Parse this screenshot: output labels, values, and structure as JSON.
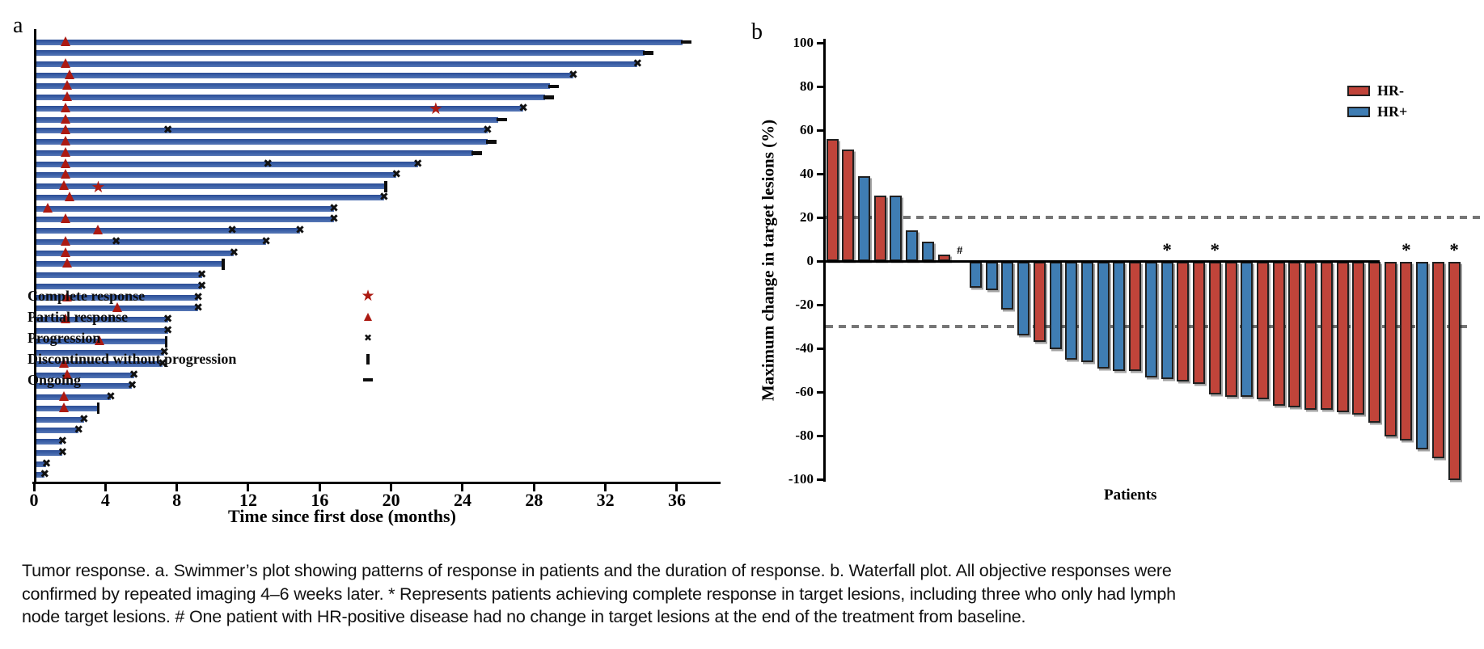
{
  "figure": {
    "panel_a_label": "a",
    "panel_b_label": "b",
    "background": "#ffffff"
  },
  "caption": {
    "lines": [
      "Tumor response. a. Swimmer’s plot showing patterns of response in patients and the duration of response. b. Waterfall plot. All objective responses were",
      "confirmed by repeated imaging 4–6 weeks later. * Represents patients achieving complete response in target lesions, including three who only had lymph",
      "node target lesions. # One patient with HR-positive disease had no change in target lesions at the end of the treatment from baseline."
    ]
  },
  "chart_data": [
    {
      "id": "swimmer_plot",
      "type": "bar",
      "orientation": "horizontal",
      "xlabel": "Time since first dose (months)",
      "xlim": [
        0,
        38.4
      ],
      "x_ticks": [
        0,
        4,
        8,
        12,
        16,
        20,
        24,
        28,
        32,
        36
      ],
      "grid": false,
      "bar_color": "#3a5fa7",
      "response_marker_color": "#ac1a12",
      "event_marker_color": "#111111",
      "legend_position": "center-right",
      "legend": [
        {
          "symbol": "star",
          "label": "Complete response"
        },
        {
          "symbol": "triangle",
          "label": "Partial response"
        },
        {
          "symbol": "x",
          "label": "Progression"
        },
        {
          "symbol": "bar",
          "label": "Discontinued without progression"
        },
        {
          "symbol": "dash",
          "label": "Ongoing"
        }
      ],
      "patients": [
        {
          "months": 36.3,
          "end": "ongoing",
          "events": [
            {
              "type": "partial_response",
              "month": 1.8
            }
          ]
        },
        {
          "months": 34.2,
          "end": "ongoing",
          "events": []
        },
        {
          "months": 33.8,
          "end": "progression",
          "events": [
            {
              "type": "partial_response",
              "month": 1.8
            }
          ]
        },
        {
          "months": 30.2,
          "end": "progression",
          "events": [
            {
              "type": "partial_response",
              "month": 2.0
            }
          ]
        },
        {
          "months": 28.9,
          "end": "ongoing",
          "events": [
            {
              "type": "partial_response",
              "month": 1.9
            }
          ]
        },
        {
          "months": 28.6,
          "end": "ongoing",
          "events": [
            {
              "type": "partial_response",
              "month": 1.9
            }
          ]
        },
        {
          "months": 27.4,
          "end": "progression",
          "events": [
            {
              "type": "partial_response",
              "month": 1.8
            },
            {
              "type": "complete_response",
              "month": 22.5
            }
          ]
        },
        {
          "months": 26.0,
          "end": "ongoing",
          "events": [
            {
              "type": "partial_response",
              "month": 1.8
            }
          ]
        },
        {
          "months": 25.4,
          "end": "progression",
          "events": [
            {
              "type": "partial_response",
              "month": 1.8
            },
            {
              "type": "progression",
              "month": 7.5
            }
          ]
        },
        {
          "months": 25.4,
          "end": "ongoing",
          "events": [
            {
              "type": "partial_response",
              "month": 1.8
            }
          ]
        },
        {
          "months": 24.6,
          "end": "ongoing",
          "events": [
            {
              "type": "partial_response",
              "month": 1.8
            }
          ]
        },
        {
          "months": 21.5,
          "end": "progression",
          "events": [
            {
              "type": "partial_response",
              "month": 1.8
            },
            {
              "type": "progression",
              "month": 13.1
            }
          ]
        },
        {
          "months": 20.3,
          "end": "progression",
          "events": [
            {
              "type": "partial_response",
              "month": 1.8
            }
          ]
        },
        {
          "months": 19.7,
          "end": "discontinued",
          "events": [
            {
              "type": "partial_response",
              "month": 1.7
            },
            {
              "type": "complete_response",
              "month": 3.6
            }
          ]
        },
        {
          "months": 19.6,
          "end": "progression",
          "events": [
            {
              "type": "partial_response",
              "month": 2.0
            }
          ]
        },
        {
          "months": 16.8,
          "end": "progression",
          "events": [
            {
              "type": "partial_response",
              "month": 0.8
            }
          ]
        },
        {
          "months": 16.8,
          "end": "progression",
          "events": [
            {
              "type": "partial_response",
              "month": 1.8
            }
          ]
        },
        {
          "months": 14.9,
          "end": "progression",
          "events": [
            {
              "type": "partial_response",
              "month": 3.6
            },
            {
              "type": "progression",
              "month": 11.1
            }
          ]
        },
        {
          "months": 13.0,
          "end": "progression",
          "events": [
            {
              "type": "partial_response",
              "month": 1.8
            },
            {
              "type": "progression",
              "month": 4.6
            }
          ]
        },
        {
          "months": 11.2,
          "end": "progression",
          "events": [
            {
              "type": "partial_response",
              "month": 1.8
            }
          ]
        },
        {
          "months": 10.6,
          "end": "discontinued",
          "events": [
            {
              "type": "partial_response",
              "month": 1.9
            }
          ]
        },
        {
          "months": 9.4,
          "end": "progression",
          "events": []
        },
        {
          "months": 9.4,
          "end": "progression",
          "events": []
        },
        {
          "months": 9.2,
          "end": "progression",
          "events": [
            {
              "type": "partial_response",
              "month": 1.9
            }
          ]
        },
        {
          "months": 9.2,
          "end": "progression",
          "events": [
            {
              "type": "partial_response",
              "month": 4.7
            }
          ]
        },
        {
          "months": 7.5,
          "end": "progression",
          "events": [
            {
              "type": "partial_response",
              "month": 1.8
            }
          ]
        },
        {
          "months": 7.5,
          "end": "progression",
          "events": []
        },
        {
          "months": 7.4,
          "end": "discontinued",
          "events": [
            {
              "type": "partial_response",
              "month": 3.7
            }
          ]
        },
        {
          "months": 7.3,
          "end": "progression",
          "events": []
        },
        {
          "months": 7.2,
          "end": "progression",
          "events": [
            {
              "type": "partial_response",
              "month": 1.7
            }
          ]
        },
        {
          "months": 5.6,
          "end": "progression",
          "events": [
            {
              "type": "partial_response",
              "month": 1.9
            }
          ]
        },
        {
          "months": 5.5,
          "end": "progression",
          "events": []
        },
        {
          "months": 4.3,
          "end": "progression",
          "events": [
            {
              "type": "partial_response",
              "month": 1.7
            }
          ]
        },
        {
          "months": 3.6,
          "end": "discontinued",
          "events": [
            {
              "type": "partial_response",
              "month": 1.7
            }
          ]
        },
        {
          "months": 2.8,
          "end": "progression",
          "events": []
        },
        {
          "months": 2.5,
          "end": "progression",
          "events": []
        },
        {
          "months": 1.6,
          "end": "progression",
          "events": []
        },
        {
          "months": 1.6,
          "end": "progression",
          "events": []
        },
        {
          "months": 0.7,
          "end": "progression",
          "events": []
        },
        {
          "months": 0.6,
          "end": "progression",
          "events": []
        }
      ]
    },
    {
      "id": "waterfall_plot",
      "type": "bar",
      "ylabel": "Maximum change in target lesions (%)",
      "xlabel": "Patients",
      "ylim": [
        -100,
        100
      ],
      "y_ticks": [
        100,
        80,
        60,
        40,
        20,
        0,
        -20,
        -40,
        -60,
        -80,
        -100
      ],
      "reference_lines": [
        20,
        -30
      ],
      "reference_line_color": "#767676",
      "grid": false,
      "legend_position": "top-right",
      "legend": [
        {
          "label": "HR-",
          "color": "#c0443a"
        },
        {
          "label": "HR+",
          "color": "#3f7db3"
        }
      ],
      "patients": [
        {
          "value": 56,
          "group": "HR-"
        },
        {
          "value": 51,
          "group": "HR-"
        },
        {
          "value": 39,
          "group": "HR+"
        },
        {
          "value": 30,
          "group": "HR-"
        },
        {
          "value": 30,
          "group": "HR+"
        },
        {
          "value": 14,
          "group": "HR+"
        },
        {
          "value": 9,
          "group": "HR+"
        },
        {
          "value": 3,
          "group": "HR-"
        },
        {
          "value": 0,
          "group": "HR+",
          "annotation": "#"
        },
        {
          "value": -12,
          "group": "HR+"
        },
        {
          "value": -13,
          "group": "HR+"
        },
        {
          "value": -22,
          "group": "HR+"
        },
        {
          "value": -34,
          "group": "HR+"
        },
        {
          "value": -37,
          "group": "HR-"
        },
        {
          "value": -40,
          "group": "HR+"
        },
        {
          "value": -45,
          "group": "HR+"
        },
        {
          "value": -46,
          "group": "HR+"
        },
        {
          "value": -49,
          "group": "HR+"
        },
        {
          "value": -50,
          "group": "HR+"
        },
        {
          "value": -50,
          "group": "HR-"
        },
        {
          "value": -53,
          "group": "HR+"
        },
        {
          "value": -54,
          "group": "HR+",
          "annotation": "*"
        },
        {
          "value": -55,
          "group": "HR-"
        },
        {
          "value": -56,
          "group": "HR-"
        },
        {
          "value": -61,
          "group": "HR-",
          "annotation": "*"
        },
        {
          "value": -62,
          "group": "HR-"
        },
        {
          "value": -62,
          "group": "HR+"
        },
        {
          "value": -63,
          "group": "HR-"
        },
        {
          "value": -66,
          "group": "HR-"
        },
        {
          "value": -67,
          "group": "HR-"
        },
        {
          "value": -68,
          "group": "HR-"
        },
        {
          "value": -68,
          "group": "HR-"
        },
        {
          "value": -69,
          "group": "HR-"
        },
        {
          "value": -70,
          "group": "HR-"
        },
        {
          "value": -74,
          "group": "HR-"
        },
        {
          "value": -80,
          "group": "HR-"
        },
        {
          "value": -82,
          "group": "HR-",
          "annotation": "*"
        },
        {
          "value": -86,
          "group": "HR+"
        },
        {
          "value": -90,
          "group": "HR-"
        },
        {
          "value": -100,
          "group": "HR-",
          "annotation": "*"
        }
      ]
    }
  ]
}
